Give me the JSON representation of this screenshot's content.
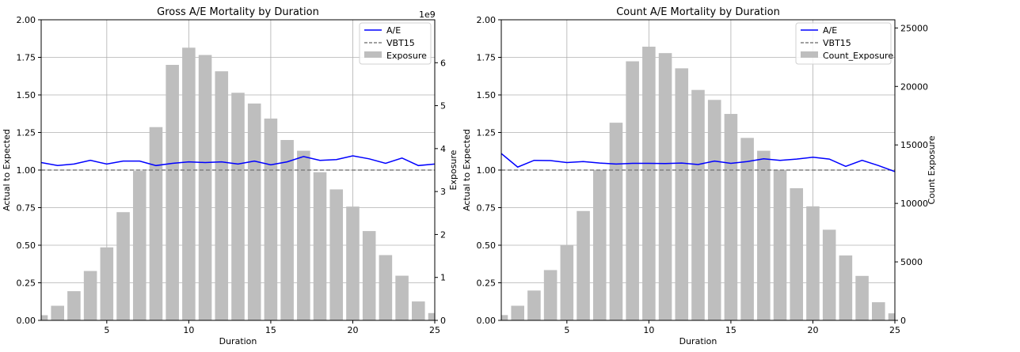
{
  "chart_data": [
    {
      "type": "bar+line",
      "title": "Gross A/E Mortality by Duration",
      "xlabel": "Duration",
      "ylabel": "Actual to Expected",
      "ylabel_right": "Exposure",
      "right_axis_offset_text": "1e9",
      "xlim": [
        1,
        25
      ],
      "ylim": [
        0,
        2.0
      ],
      "ylim_right": [
        0,
        7
      ],
      "x_ticks": [
        5,
        10,
        15,
        20,
        25
      ],
      "x_tick_labels": [
        "5",
        "10",
        "15",
        "20",
        "25"
      ],
      "y_ticks": [
        0,
        0.25,
        0.5,
        0.75,
        1.0,
        1.25,
        1.5,
        1.75,
        2.0
      ],
      "y_tick_labels": [
        "0.00",
        "0.25",
        "0.50",
        "0.75",
        "1.00",
        "1.25",
        "1.50",
        "1.75",
        "2.00"
      ],
      "y_right_ticks": [
        0,
        1,
        2,
        3,
        4,
        5,
        6
      ],
      "y_right_tick_labels": [
        "0",
        "1",
        "2",
        "3",
        "4",
        "5",
        "6"
      ],
      "grid": true,
      "legend_position": "top-right",
      "reference_line": {
        "name": "VBT15",
        "value": 1.0,
        "color": "#808080",
        "style": "dashed"
      },
      "ae_series": {
        "name": "A/E",
        "color": "#0000ff",
        "x": [
          1,
          2,
          3,
          4,
          5,
          6,
          7,
          8,
          9,
          10,
          11,
          12,
          13,
          14,
          15,
          16,
          17,
          18,
          19,
          20,
          21,
          22,
          23,
          24,
          25
        ],
        "values": [
          1.05,
          1.03,
          1.04,
          1.065,
          1.04,
          1.06,
          1.06,
          1.03,
          1.045,
          1.055,
          1.05,
          1.055,
          1.04,
          1.06,
          1.035,
          1.055,
          1.09,
          1.065,
          1.07,
          1.095,
          1.075,
          1.045,
          1.08,
          1.03,
          1.04
        ]
      },
      "bar_series": {
        "name": "Exposure",
        "color": "#bebebe",
        "x": [
          1,
          2,
          3,
          4,
          5,
          6,
          7,
          8,
          9,
          10,
          11,
          12,
          13,
          14,
          15,
          16,
          17,
          18,
          19,
          20,
          21,
          22,
          23,
          24,
          25
        ],
        "values": [
          0.12,
          0.34,
          0.68,
          1.15,
          1.7,
          2.52,
          3.48,
          4.5,
          5.95,
          6.35,
          6.18,
          5.8,
          5.3,
          5.05,
          4.7,
          4.2,
          3.95,
          3.45,
          3.05,
          2.65,
          2.08,
          1.52,
          1.04,
          0.44,
          0.17
        ]
      }
    },
    {
      "type": "bar+line",
      "title": "Count A/E Mortality by Duration",
      "xlabel": "Duration",
      "ylabel": "Actual to Expected",
      "ylabel_right": "Count Exposure",
      "xlim": [
        1,
        25
      ],
      "ylim": [
        0,
        2.0
      ],
      "ylim_right": [
        0,
        25700
      ],
      "x_ticks": [
        5,
        10,
        15,
        20,
        25
      ],
      "x_tick_labels": [
        "5",
        "10",
        "15",
        "20",
        "25"
      ],
      "y_ticks": [
        0,
        0.25,
        0.5,
        0.75,
        1.0,
        1.25,
        1.5,
        1.75,
        2.0
      ],
      "y_tick_labels": [
        "0.00",
        "0.25",
        "0.50",
        "0.75",
        "1.00",
        "1.25",
        "1.50",
        "1.75",
        "2.00"
      ],
      "y_right_ticks": [
        0,
        5000,
        10000,
        15000,
        20000,
        25000
      ],
      "y_right_tick_labels": [
        "0",
        "5000",
        "10000",
        "15000",
        "20000",
        "25000"
      ],
      "grid": true,
      "legend_position": "top-right",
      "reference_line": {
        "name": "VBT15",
        "value": 1.0,
        "color": "#808080",
        "style": "dashed"
      },
      "ae_series": {
        "name": "A/E",
        "color": "#0000ff",
        "x": [
          1,
          2,
          3,
          4,
          5,
          6,
          7,
          8,
          9,
          10,
          11,
          12,
          13,
          14,
          15,
          16,
          17,
          18,
          19,
          20,
          21,
          22,
          23,
          24,
          25
        ],
        "values": [
          1.11,
          1.02,
          1.065,
          1.063,
          1.05,
          1.057,
          1.047,
          1.04,
          1.045,
          1.045,
          1.043,
          1.047,
          1.037,
          1.06,
          1.045,
          1.057,
          1.075,
          1.065,
          1.073,
          1.085,
          1.073,
          1.025,
          1.065,
          1.03,
          0.99
        ]
      },
      "bar_series": {
        "name": "Count_Exposure",
        "color": "#bebebe",
        "x": [
          1,
          2,
          3,
          4,
          5,
          6,
          7,
          8,
          9,
          10,
          11,
          12,
          13,
          14,
          15,
          16,
          17,
          18,
          19,
          20,
          21,
          22,
          23,
          24,
          25
        ],
        "values": [
          450,
          1250,
          2550,
          4300,
          6450,
          9350,
          12850,
          16900,
          22150,
          23400,
          22850,
          21550,
          19700,
          18850,
          17650,
          15600,
          14500,
          12850,
          11300,
          9750,
          7750,
          5550,
          3800,
          1550,
          600
        ]
      }
    }
  ]
}
